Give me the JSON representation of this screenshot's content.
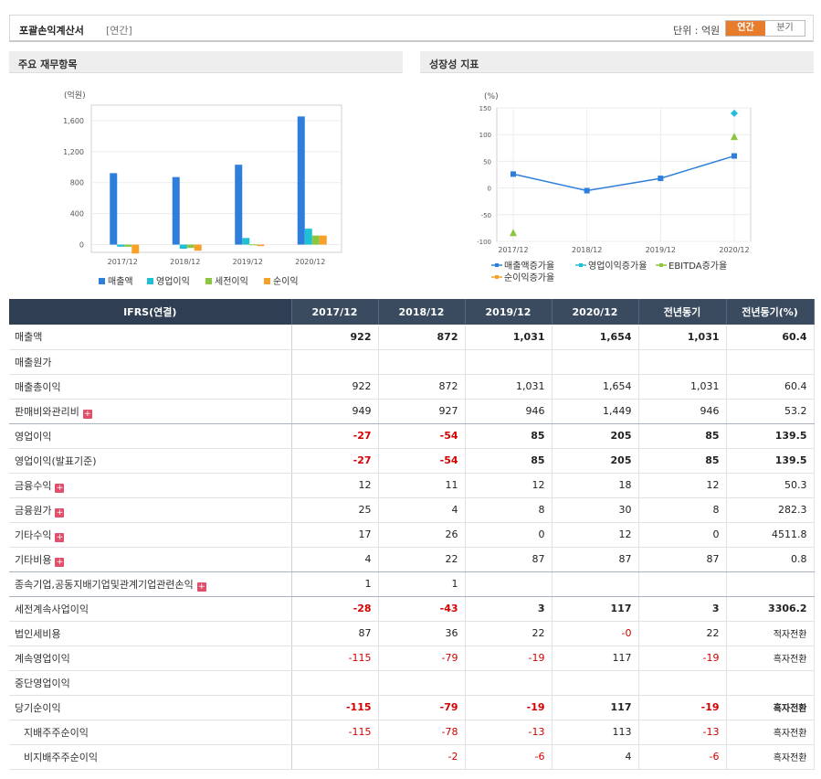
{
  "header": {
    "title": "포괄손익계산서",
    "sub": "[연간]",
    "unit": "단위 : 억원",
    "toggle": [
      "연간",
      "분기"
    ],
    "active_toggle": 0
  },
  "sections": {
    "left": "주요 재무항목",
    "right": "성장성 지표"
  },
  "chart_data": [
    {
      "type": "bar",
      "ylabel": "(억원)",
      "categories": [
        "2017/12",
        "2018/12",
        "2019/12",
        "2020/12"
      ],
      "yticks": [
        "1,600",
        "1,200",
        "800",
        "400",
        "0"
      ],
      "ylim": [
        -100,
        1800
      ],
      "series": [
        {
          "name": "매출액",
          "color": "#2d7fdb",
          "values": [
            922,
            872,
            1031,
            1654
          ]
        },
        {
          "name": "영업이익",
          "color": "#1fbfd6",
          "values": [
            -27,
            -54,
            85,
            205
          ]
        },
        {
          "name": "세전이익",
          "color": "#8cc63f",
          "values": [
            -28,
            -43,
            3,
            117
          ]
        },
        {
          "name": "순이익",
          "color": "#f7a12b",
          "values": [
            -115,
            -79,
            -19,
            117
          ]
        }
      ],
      "legend": "bottom"
    },
    {
      "type": "line",
      "ylabel": "(%)",
      "categories": [
        "2017/12",
        "2018/12",
        "2019/12",
        "2020/12"
      ],
      "yticks": [
        "150",
        "100",
        "50",
        "0",
        "-50",
        "-100"
      ],
      "ylim": [
        -100,
        150
      ],
      "series": [
        {
          "name": "매출액증가율",
          "color": "#2d7fdb",
          "values": [
            26,
            -5,
            18,
            60
          ]
        },
        {
          "name": "영업이익증가율",
          "color": "#1fbfd6",
          "values": [
            null,
            null,
            null,
            140
          ]
        },
        {
          "name": "EBITDA증가율",
          "color": "#8cc63f",
          "values": [
            -85,
            null,
            null,
            95
          ]
        },
        {
          "name": "순이익증가율",
          "color": "#f7a12b",
          "values": [
            null,
            null,
            null,
            null
          ]
        }
      ],
      "legend": "bottom"
    }
  ],
  "table": {
    "headers": [
      "IFRS(연결)",
      "2017/12",
      "2018/12",
      "2019/12",
      "2020/12",
      "전년동기",
      "전년동기(%)"
    ],
    "rows": [
      {
        "label": "매출액",
        "bold": true,
        "plus": false,
        "indent": false,
        "values": [
          "922",
          "872",
          "1,031",
          "1,654",
          "1,031",
          "60.4"
        ]
      },
      {
        "label": "매출원가",
        "bold": false,
        "plus": false,
        "indent": false,
        "values": [
          "",
          "",
          "",
          "",
          "",
          ""
        ]
      },
      {
        "label": "매출총이익",
        "bold": false,
        "plus": false,
        "indent": false,
        "values": [
          "922",
          "872",
          "1,031",
          "1,654",
          "1,031",
          "60.4"
        ]
      },
      {
        "label": "판매비와관리비",
        "bold": false,
        "plus": true,
        "indent": false,
        "values": [
          "949",
          "927",
          "946",
          "1,449",
          "946",
          "53.2"
        ]
      },
      {
        "label": "영업이익",
        "bold": true,
        "plus": false,
        "indent": false,
        "values": [
          "-27",
          "-54",
          "85",
          "205",
          "85",
          "139.5"
        ]
      },
      {
        "label": "영업이익(발표기준)",
        "bold": true,
        "plus": false,
        "indent": false,
        "values": [
          "-27",
          "-54",
          "85",
          "205",
          "85",
          "139.5"
        ]
      },
      {
        "label": "금융수익",
        "bold": false,
        "plus": true,
        "indent": false,
        "values": [
          "12",
          "11",
          "12",
          "18",
          "12",
          "50.3"
        ]
      },
      {
        "label": "금융원가",
        "bold": false,
        "plus": true,
        "indent": false,
        "values": [
          "25",
          "4",
          "8",
          "30",
          "8",
          "282.3"
        ]
      },
      {
        "label": "기타수익",
        "bold": false,
        "plus": true,
        "indent": false,
        "values": [
          "17",
          "26",
          "0",
          "12",
          "0",
          "4511.8"
        ]
      },
      {
        "label": "기타비용",
        "bold": false,
        "plus": true,
        "indent": false,
        "values": [
          "4",
          "22",
          "87",
          "87",
          "87",
          "0.8"
        ]
      },
      {
        "label": "종속기업,공동지배기업및관계기업관련손익",
        "bold": false,
        "plus": true,
        "indent": false,
        "values": [
          "1",
          "1",
          "",
          "",
          "",
          ""
        ]
      },
      {
        "label": "세전계속사업이익",
        "bold": true,
        "plus": false,
        "indent": false,
        "values": [
          "-28",
          "-43",
          "3",
          "117",
          "3",
          "3306.2"
        ]
      },
      {
        "label": "법인세비용",
        "bold": false,
        "plus": false,
        "indent": false,
        "values": [
          "87",
          "36",
          "22",
          "-0",
          "22",
          "적자전환"
        ]
      },
      {
        "label": "계속영업이익",
        "bold": false,
        "plus": false,
        "indent": false,
        "values": [
          "-115",
          "-79",
          "-19",
          "117",
          "-19",
          "흑자전환"
        ]
      },
      {
        "label": "중단영업이익",
        "bold": false,
        "plus": false,
        "indent": false,
        "values": [
          "",
          "",
          "",
          "",
          "",
          ""
        ]
      },
      {
        "label": "당기순이익",
        "bold": true,
        "plus": false,
        "indent": false,
        "values": [
          "-115",
          "-79",
          "-19",
          "117",
          "-19",
          "흑자전환"
        ]
      },
      {
        "label": "지배주주순이익",
        "bold": false,
        "plus": false,
        "indent": true,
        "values": [
          "-115",
          "-78",
          "-13",
          "113",
          "-13",
          "흑자전환"
        ]
      },
      {
        "label": "비지배주주순이익",
        "bold": false,
        "plus": false,
        "indent": true,
        "values": [
          "",
          "-2",
          "-6",
          "4",
          "-6",
          "흑자전환"
        ]
      }
    ]
  }
}
